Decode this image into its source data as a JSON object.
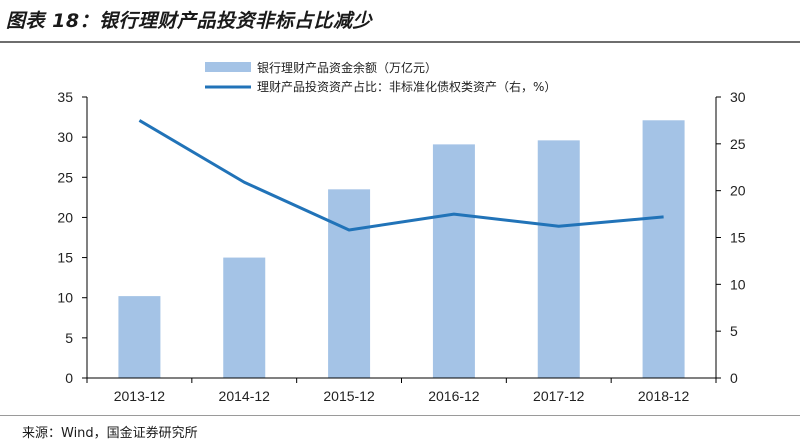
{
  "title": "图表 18：银行理财产品投资非标占比减少",
  "source": "来源：Wind，国金证券研究所",
  "colors": {
    "bar": "#a4c3e6",
    "line": "#2173b8",
    "axis": "#000000"
  },
  "chart_data": {
    "type": "bar",
    "categories": [
      "2013-12",
      "2014-12",
      "2015-12",
      "2016-12",
      "2017-12",
      "2018-12"
    ],
    "series": [
      {
        "name": "银行理财产品资金余额（万亿元）",
        "type": "bar",
        "axis": "left",
        "values": [
          10.2,
          15.0,
          23.5,
          29.1,
          29.6,
          32.1
        ]
      },
      {
        "name": "理财产品投资资产占比：非标准化债权类资产（右，%）",
        "type": "line",
        "axis": "right",
        "values": [
          27.5,
          20.9,
          15.8,
          17.5,
          16.2,
          17.2
        ]
      }
    ],
    "y_left": {
      "min": 0,
      "max": 35,
      "ticks": [
        "0",
        "5",
        "10",
        "15",
        "20",
        "25",
        "30",
        "35"
      ]
    },
    "y_right": {
      "min": 0,
      "max": 30,
      "ticks": [
        "0",
        "5",
        "10",
        "15",
        "20",
        "25",
        "30"
      ]
    },
    "legend_position": "top",
    "grid": false
  }
}
